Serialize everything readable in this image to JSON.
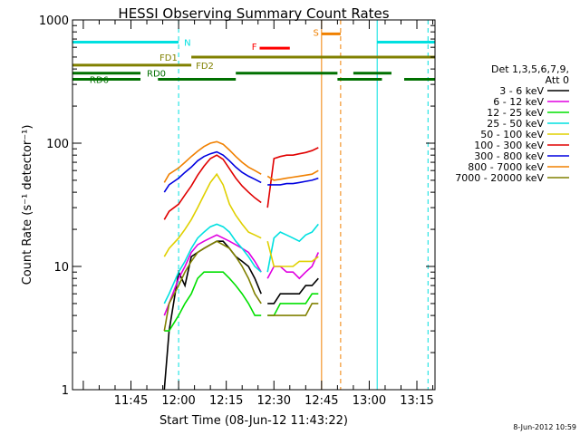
{
  "chart_data": {
    "type": "line",
    "title": "HESSI Observing Summary Count Rates",
    "xlabel": "Start Time (08-Jun-12 11:43:22)",
    "ylabel": "Count Rate (s⁻¹ detector⁻¹)",
    "yscale": "log",
    "ylim": [
      1,
      1000
    ],
    "xlim_minutes": [
      -18.4,
      95.7
    ],
    "x_ticks": [
      {
        "label": "11:45",
        "min": 0
      },
      {
        "label": "12:00",
        "min": 15
      },
      {
        "label": "12:15",
        "min": 30
      },
      {
        "label": "12:30",
        "min": 45
      },
      {
        "label": "12:45",
        "min": 60
      },
      {
        "label": "13:00",
        "min": 75
      },
      {
        "label": "13:15",
        "min": 90
      }
    ],
    "y_ticks": [
      "1",
      "10",
      "100",
      "1000"
    ],
    "legend_header": [
      "Det 1,3,5,6,7,9,",
      "Att 0"
    ],
    "series": [
      {
        "name": "3 - 6 keV",
        "color": "#000000",
        "time_min": [
          10.5,
          12,
          15,
          17,
          19,
          21,
          23,
          25,
          27,
          29,
          31,
          33,
          35,
          37,
          39,
          41,
          43,
          45,
          47,
          49,
          51,
          53,
          55,
          57,
          59
        ],
        "values": [
          1,
          3,
          9,
          7,
          12,
          13,
          14,
          15,
          16,
          16,
          14,
          12,
          11,
          10,
          8,
          6,
          5,
          5,
          6,
          6,
          6,
          6,
          7,
          7,
          8
        ]
      },
      {
        "name": "6 - 12 keV",
        "color": "#e000e0",
        "time_min": [
          10.5,
          12,
          15,
          17,
          19,
          21,
          23,
          25,
          27,
          29,
          31,
          33,
          35,
          37,
          39,
          41,
          43,
          45,
          47,
          49,
          51,
          53,
          55,
          57,
          59
        ],
        "values": [
          4,
          5,
          8,
          10,
          13,
          15,
          16,
          17,
          18,
          17,
          16,
          15,
          14,
          13,
          11,
          9,
          8,
          10,
          10,
          9,
          9,
          8,
          9,
          10,
          13
        ]
      },
      {
        "name": "12 - 25 keV",
        "color": "#00e000",
        "time_min": [
          10.5,
          12,
          15,
          17,
          19,
          21,
          23,
          25,
          27,
          29,
          31,
          33,
          35,
          37,
          39,
          41,
          43,
          45,
          47,
          49,
          51,
          53,
          55,
          57,
          59
        ],
        "values": [
          3,
          3,
          4,
          5,
          6,
          8,
          9,
          9,
          9,
          9,
          8,
          7,
          6,
          5,
          4,
          4,
          4,
          4,
          5,
          5,
          5,
          5,
          5,
          6,
          6
        ]
      },
      {
        "name": "25 - 50 keV",
        "color": "#00e0e0",
        "time_min": [
          10.5,
          12,
          15,
          17,
          19,
          21,
          23,
          25,
          27,
          29,
          31,
          33,
          35,
          37,
          39,
          41,
          43,
          45,
          47,
          49,
          51,
          53,
          55,
          57,
          59
        ],
        "values": [
          5,
          6,
          9,
          11,
          14,
          17,
          19,
          21,
          22,
          21,
          19,
          16,
          14,
          12,
          10,
          9,
          9,
          17,
          19,
          18,
          17,
          16,
          18,
          19,
          22
        ]
      },
      {
        "name": "50 - 100 keV",
        "color": "#e0d000",
        "time_min": [
          10.5,
          12,
          15,
          17,
          19,
          21,
          23,
          25,
          27,
          29,
          31,
          33,
          35,
          37,
          39,
          41,
          43,
          45,
          47,
          49,
          51,
          53,
          55,
          57,
          59
        ],
        "values": [
          12,
          14,
          17,
          20,
          24,
          30,
          38,
          48,
          56,
          46,
          32,
          26,
          22,
          19,
          18,
          17,
          16,
          10,
          10,
          10,
          10,
          11,
          11,
          11,
          12
        ]
      },
      {
        "name": "100 - 300 keV",
        "color": "#e00000",
        "time_min": [
          10.5,
          12,
          15,
          17,
          19,
          21,
          23,
          25,
          27,
          29,
          31,
          33,
          35,
          37,
          39,
          41,
          43,
          45,
          47,
          49,
          51,
          53,
          55,
          57,
          59
        ],
        "values": [
          24,
          28,
          32,
          38,
          45,
          55,
          65,
          75,
          80,
          74,
          62,
          52,
          45,
          40,
          36,
          33,
          30,
          75,
          78,
          80,
          80,
          82,
          84,
          87,
          92
        ]
      },
      {
        "name": "300 - 800 keV",
        "color": "#0000e0",
        "time_min": [
          10.5,
          12,
          15,
          17,
          19,
          21,
          23,
          25,
          27,
          29,
          31,
          33,
          35,
          37,
          39,
          41,
          43,
          45,
          47,
          49,
          51,
          53,
          55,
          57,
          59
        ],
        "values": [
          40,
          46,
          52,
          58,
          64,
          72,
          78,
          82,
          85,
          80,
          72,
          64,
          58,
          54,
          51,
          48,
          46,
          46,
          46,
          47,
          47,
          48,
          49,
          50,
          52
        ]
      },
      {
        "name": "800 - 7000 keV",
        "color": "#f08000",
        "time_min": [
          10.5,
          12,
          15,
          17,
          19,
          21,
          23,
          25,
          27,
          29,
          31,
          33,
          35,
          37,
          39,
          41,
          43,
          45,
          47,
          49,
          51,
          53,
          55,
          57,
          59
        ],
        "values": [
          48,
          56,
          63,
          70,
          78,
          86,
          94,
          100,
          103,
          98,
          88,
          78,
          70,
          64,
          60,
          56,
          54,
          50,
          51,
          52,
          53,
          54,
          55,
          56,
          60
        ]
      },
      {
        "name": "7000 - 20000 keV",
        "color": "#808000",
        "time_min": [
          10.5,
          12,
          15,
          17,
          19,
          21,
          23,
          25,
          27,
          29,
          31,
          33,
          35,
          37,
          39,
          41,
          43,
          45,
          47,
          49,
          51,
          53,
          55,
          57,
          59
        ],
        "values": [
          3,
          5,
          7,
          9,
          11,
          13,
          14,
          15,
          16,
          15,
          14,
          12,
          10,
          8,
          6,
          5,
          4,
          4,
          4,
          4,
          4,
          4,
          4,
          5,
          5
        ]
      }
    ],
    "flag_bars": [
      {
        "label": "N",
        "color": "#00e0e0",
        "segments": [
          [
            -18.4,
            15
          ],
          [
            77.5,
            95.7
          ]
        ],
        "level": 660
      },
      {
        "label": "S",
        "color": "#f08000",
        "segments": [
          [
            60,
            66
          ]
        ],
        "level": 770
      },
      {
        "label": "F",
        "color": "#ff0000",
        "segments": [
          [
            40.5,
            50
          ]
        ],
        "level": 590
      },
      {
        "label": "FD1",
        "color": "#808000",
        "segments": [
          [
            19,
            95.7
          ]
        ],
        "level": 500
      },
      {
        "label": "FD2",
        "color": "#808000",
        "segments": [
          [
            -18.4,
            19
          ]
        ],
        "level": 430
      },
      {
        "label": "RD0",
        "color": "#007000",
        "segments": [
          [
            -18.4,
            3
          ],
          [
            33,
            65
          ],
          [
            70,
            82
          ]
        ],
        "level": 370
      },
      {
        "label": "RD6",
        "color": "#007000",
        "segments": [
          [
            -18.4,
            3
          ],
          [
            8.5,
            33
          ],
          [
            65,
            79
          ],
          [
            86,
            95.7
          ]
        ],
        "level": 330
      }
    ],
    "vlines": [
      {
        "min": 15,
        "color": "#00e0e0",
        "dash": true
      },
      {
        "min": 60,
        "color": "#f08000",
        "dash": false
      },
      {
        "min": 66,
        "color": "#f08000",
        "dash": true
      },
      {
        "min": 77.5,
        "color": "#00e0e0",
        "dash": false
      },
      {
        "min": 93.5,
        "color": "#00e0e0",
        "dash": true
      },
      {
        "min": -18.4,
        "color": "#00e0e0",
        "dash": false
      }
    ],
    "footer_date": "8-Jun-2012 10:59"
  }
}
